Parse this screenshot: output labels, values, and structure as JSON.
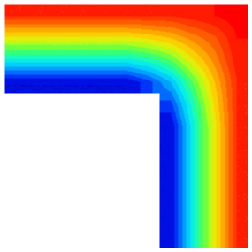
{
  "chart_data": {
    "type": "contour",
    "xlim": [
      0,
      11
    ],
    "ylim": [
      0,
      11
    ],
    "zlim": [
      0,
      100
    ],
    "tick_labels": false,
    "values": [
      [
        90,
        90,
        90,
        90,
        90,
        90,
        90,
        90,
        93,
        95,
        98
      ],
      [
        63,
        63,
        63,
        63,
        63,
        63,
        66,
        70,
        77,
        84,
        95
      ],
      [
        38,
        38,
        38,
        38,
        38,
        38,
        42,
        50,
        64,
        77,
        93
      ],
      [
        10,
        10,
        10,
        10,
        10,
        10,
        18,
        30,
        50,
        70,
        90
      ],
      [
        null,
        null,
        null,
        null,
        null,
        null,
        null,
        18,
        42,
        66,
        90
      ],
      [
        null,
        null,
        null,
        null,
        null,
        null,
        null,
        10,
        38,
        63,
        90
      ],
      [
        null,
        null,
        null,
        null,
        null,
        null,
        null,
        10,
        38,
        63,
        90
      ],
      [
        null,
        null,
        null,
        null,
        null,
        null,
        null,
        10,
        38,
        63,
        90
      ],
      [
        null,
        null,
        null,
        null,
        null,
        null,
        null,
        10,
        38,
        63,
        90
      ],
      [
        null,
        null,
        null,
        null,
        null,
        null,
        null,
        10,
        38,
        63,
        90
      ],
      [
        null,
        null,
        null,
        null,
        null,
        null,
        null,
        10,
        38,
        63,
        90
      ]
    ]
  }
}
